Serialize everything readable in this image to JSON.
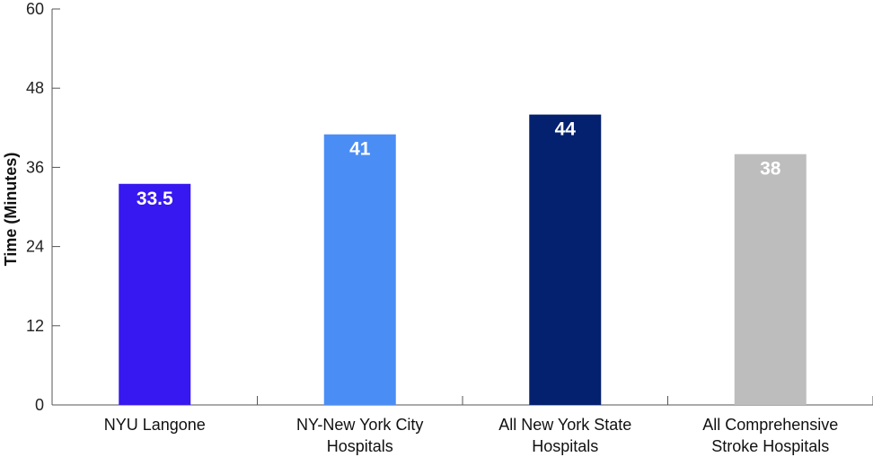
{
  "chart_data": {
    "type": "bar",
    "title": "",
    "xlabel": "",
    "ylabel": "Time (Minutes)",
    "ylim": [
      0,
      60
    ],
    "yticks": [
      0,
      12,
      24,
      36,
      48,
      60
    ],
    "grid": false,
    "categories": [
      [
        "NYU Langone"
      ],
      [
        "NY-New York City",
        "Hospitals"
      ],
      [
        "All New York State",
        "Hospitals"
      ],
      [
        "All Comprehensive",
        "Stroke Hospitals"
      ]
    ],
    "values": [
      33.5,
      41,
      44,
      38
    ],
    "value_labels": [
      "33.5",
      "41",
      "44",
      "38"
    ],
    "colors": [
      "#3718f0",
      "#4a8ef5",
      "#04216f",
      "#bdbdbd"
    ]
  }
}
